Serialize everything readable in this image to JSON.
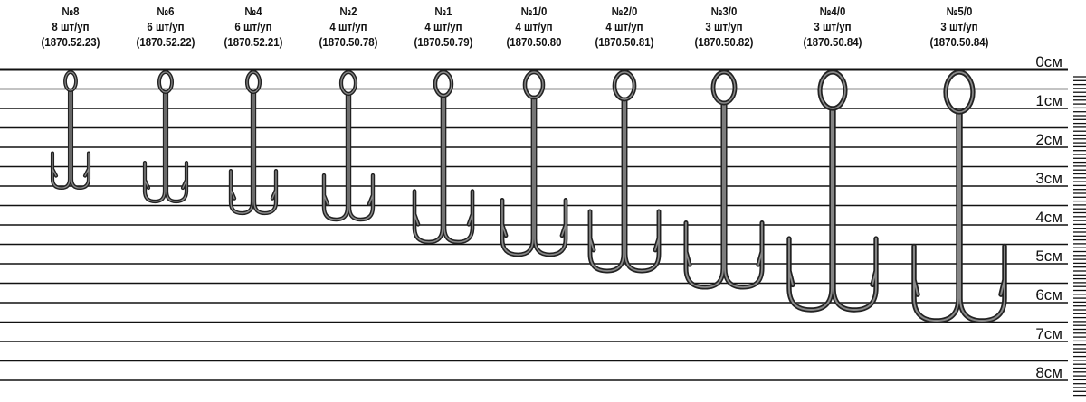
{
  "hooks": [
    {
      "size": "№8",
      "pack": "8 шт/уп",
      "code": "(1870.52.23)"
    },
    {
      "size": "№6",
      "pack": "6 шт/уп",
      "code": "(1870.52.22)"
    },
    {
      "size": "№4",
      "pack": "6 шт/уп",
      "code": "(1870.52.21)"
    },
    {
      "size": "№2",
      "pack": "4 шт/уп",
      "code": "(1870.50.78)"
    },
    {
      "size": "№1",
      "pack": "4 шт/уп",
      "code": "(1870.50.79)"
    },
    {
      "size": "№1/0",
      "pack": "4 шт/уп",
      "code": "(1870.50.80"
    },
    {
      "size": "№2/0",
      "pack": "4 шт/уп",
      "code": "(1870.50.81)"
    },
    {
      "size": "№3/0",
      "pack": "3 шт/уп",
      "code": "(1870.50.82)"
    },
    {
      "size": "№4/0",
      "pack": "3 шт/уп",
      "code": "(1870.50.84)"
    },
    {
      "size": "№5/0",
      "pack": "3 шт/уп",
      "code": "(1870.50.84)"
    }
  ],
  "ruler": {
    "labels": [
      "0см",
      "1см",
      "2см",
      "3см",
      "4см",
      "5см",
      "6см",
      "7см",
      "8см"
    ]
  },
  "colors": {
    "lines": "#111111",
    "hook": "#444444"
  }
}
